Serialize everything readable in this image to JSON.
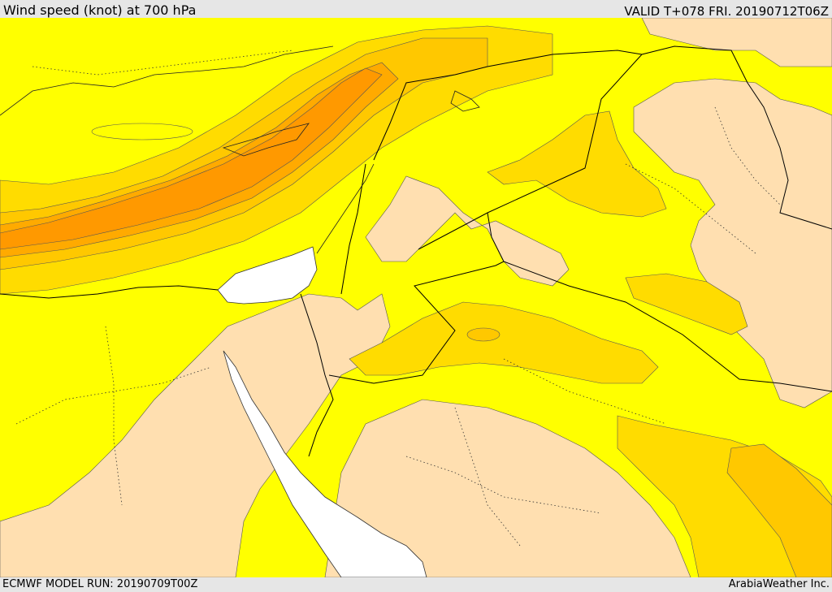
{
  "header": {
    "title": "Wind speed (knot) at 700 hPa",
    "valid": "VALID T+078 FRI. 20190712T06Z"
  },
  "footer": {
    "model_run": "ECMWF MODEL RUN: 20190709T00Z",
    "credit": "ArabiaWeather Inc."
  },
  "map": {
    "colors": {
      "sea_no_data": "#ffffff",
      "band_0": "#ffdfb0",
      "band_1": "#ffff00",
      "band_2": "#ffdc00",
      "band_3": "#ffc800",
      "band_4": "#ffaa00",
      "band_5": "#ff9900",
      "border": "#000000"
    }
  }
}
